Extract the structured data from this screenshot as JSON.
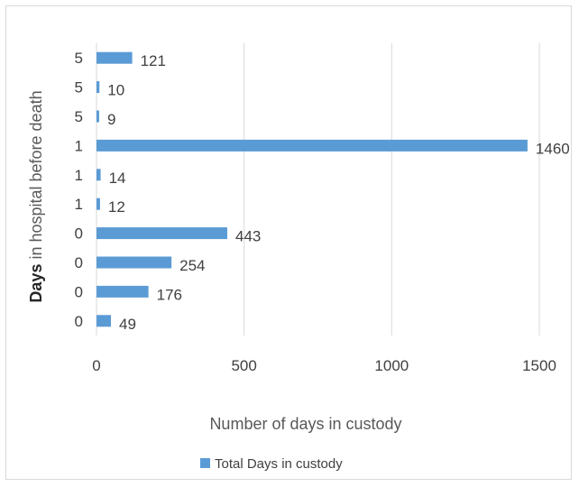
{
  "chart_data": {
    "type": "bar",
    "orientation": "horizontal",
    "categories": [
      "5",
      "5",
      "5",
      "1",
      "1",
      "1",
      "0",
      "0",
      "0",
      "0"
    ],
    "series": [
      {
        "name": "Total Days in custody",
        "values": [
          121,
          10,
          9,
          1460,
          14,
          12,
          443,
          254,
          176,
          49
        ],
        "color": "#5b9bd5"
      }
    ],
    "data_labels": [
      "121",
      "10",
      "9",
      "1460",
      "14",
      "12",
      "443",
      "254",
      "176",
      "49"
    ],
    "xlabel": "Number of days in custody",
    "ylabel_bold": "Days",
    "ylabel_rest": " in hospital before death",
    "xlim": [
      0,
      1500
    ],
    "x_ticks": [
      "0",
      "500",
      "1000",
      "1500"
    ],
    "grid": "vertical",
    "legend_position": "bottom"
  }
}
